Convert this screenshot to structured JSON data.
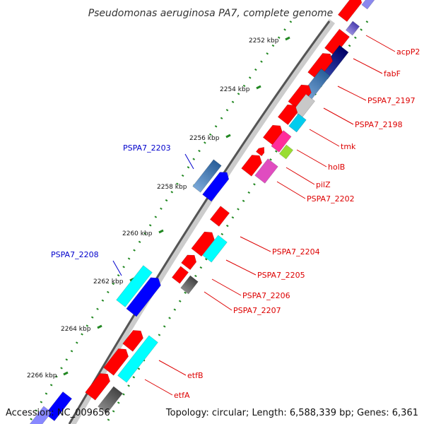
{
  "title": "Pseudomonas aeruginosa PA7, complete genome",
  "footer": {
    "accession": "Accession: NC_009656",
    "topology": "Topology: circular; Length: 6,588,339 bp; Genes: 6,361"
  },
  "colors": {
    "backbone": "#555555",
    "tick": "#228822",
    "fwd_label": "#0000cc",
    "rev_label": "#dd0000",
    "cds_red": "#ff0000",
    "cds_blue": "#0000ff",
    "cds_cyan": "#00ffff"
  },
  "kbp_marks": [
    {
      "label": "2252 kbp",
      "pos": 2252
    },
    {
      "label": "2254 kbp",
      "pos": 2254
    },
    {
      "label": "2256 kbp",
      "pos": 2256
    },
    {
      "label": "2258 kbp",
      "pos": 2258
    },
    {
      "label": "2260 kbp",
      "pos": 2260
    },
    {
      "label": "2262 kbp",
      "pos": 2262
    },
    {
      "label": "2264 kbp",
      "pos": 2264
    },
    {
      "label": "2266 kbp",
      "pos": 2266
    }
  ],
  "gene_labels": [
    {
      "text": "acpP2",
      "side": "right"
    },
    {
      "text": "fabF",
      "side": "right"
    },
    {
      "text": "PSPA7_2197",
      "side": "right"
    },
    {
      "text": "PSPA7_2198",
      "side": "right"
    },
    {
      "text": "tmk",
      "side": "right"
    },
    {
      "text": "holB",
      "side": "right"
    },
    {
      "text": "pilZ",
      "side": "right"
    },
    {
      "text": "PSPA7_2202",
      "side": "right"
    },
    {
      "text": "PSPA7_2203",
      "side": "left"
    },
    {
      "text": "PSPA7_2204",
      "side": "right"
    },
    {
      "text": "PSPA7_2205",
      "side": "right"
    },
    {
      "text": "PSPA7_2206",
      "side": "right"
    },
    {
      "text": "PSPA7_2207",
      "side": "right"
    },
    {
      "text": "PSPA7_2208",
      "side": "left"
    },
    {
      "text": "etfB",
      "side": "right"
    },
    {
      "text": "etfA",
      "side": "right"
    }
  ]
}
